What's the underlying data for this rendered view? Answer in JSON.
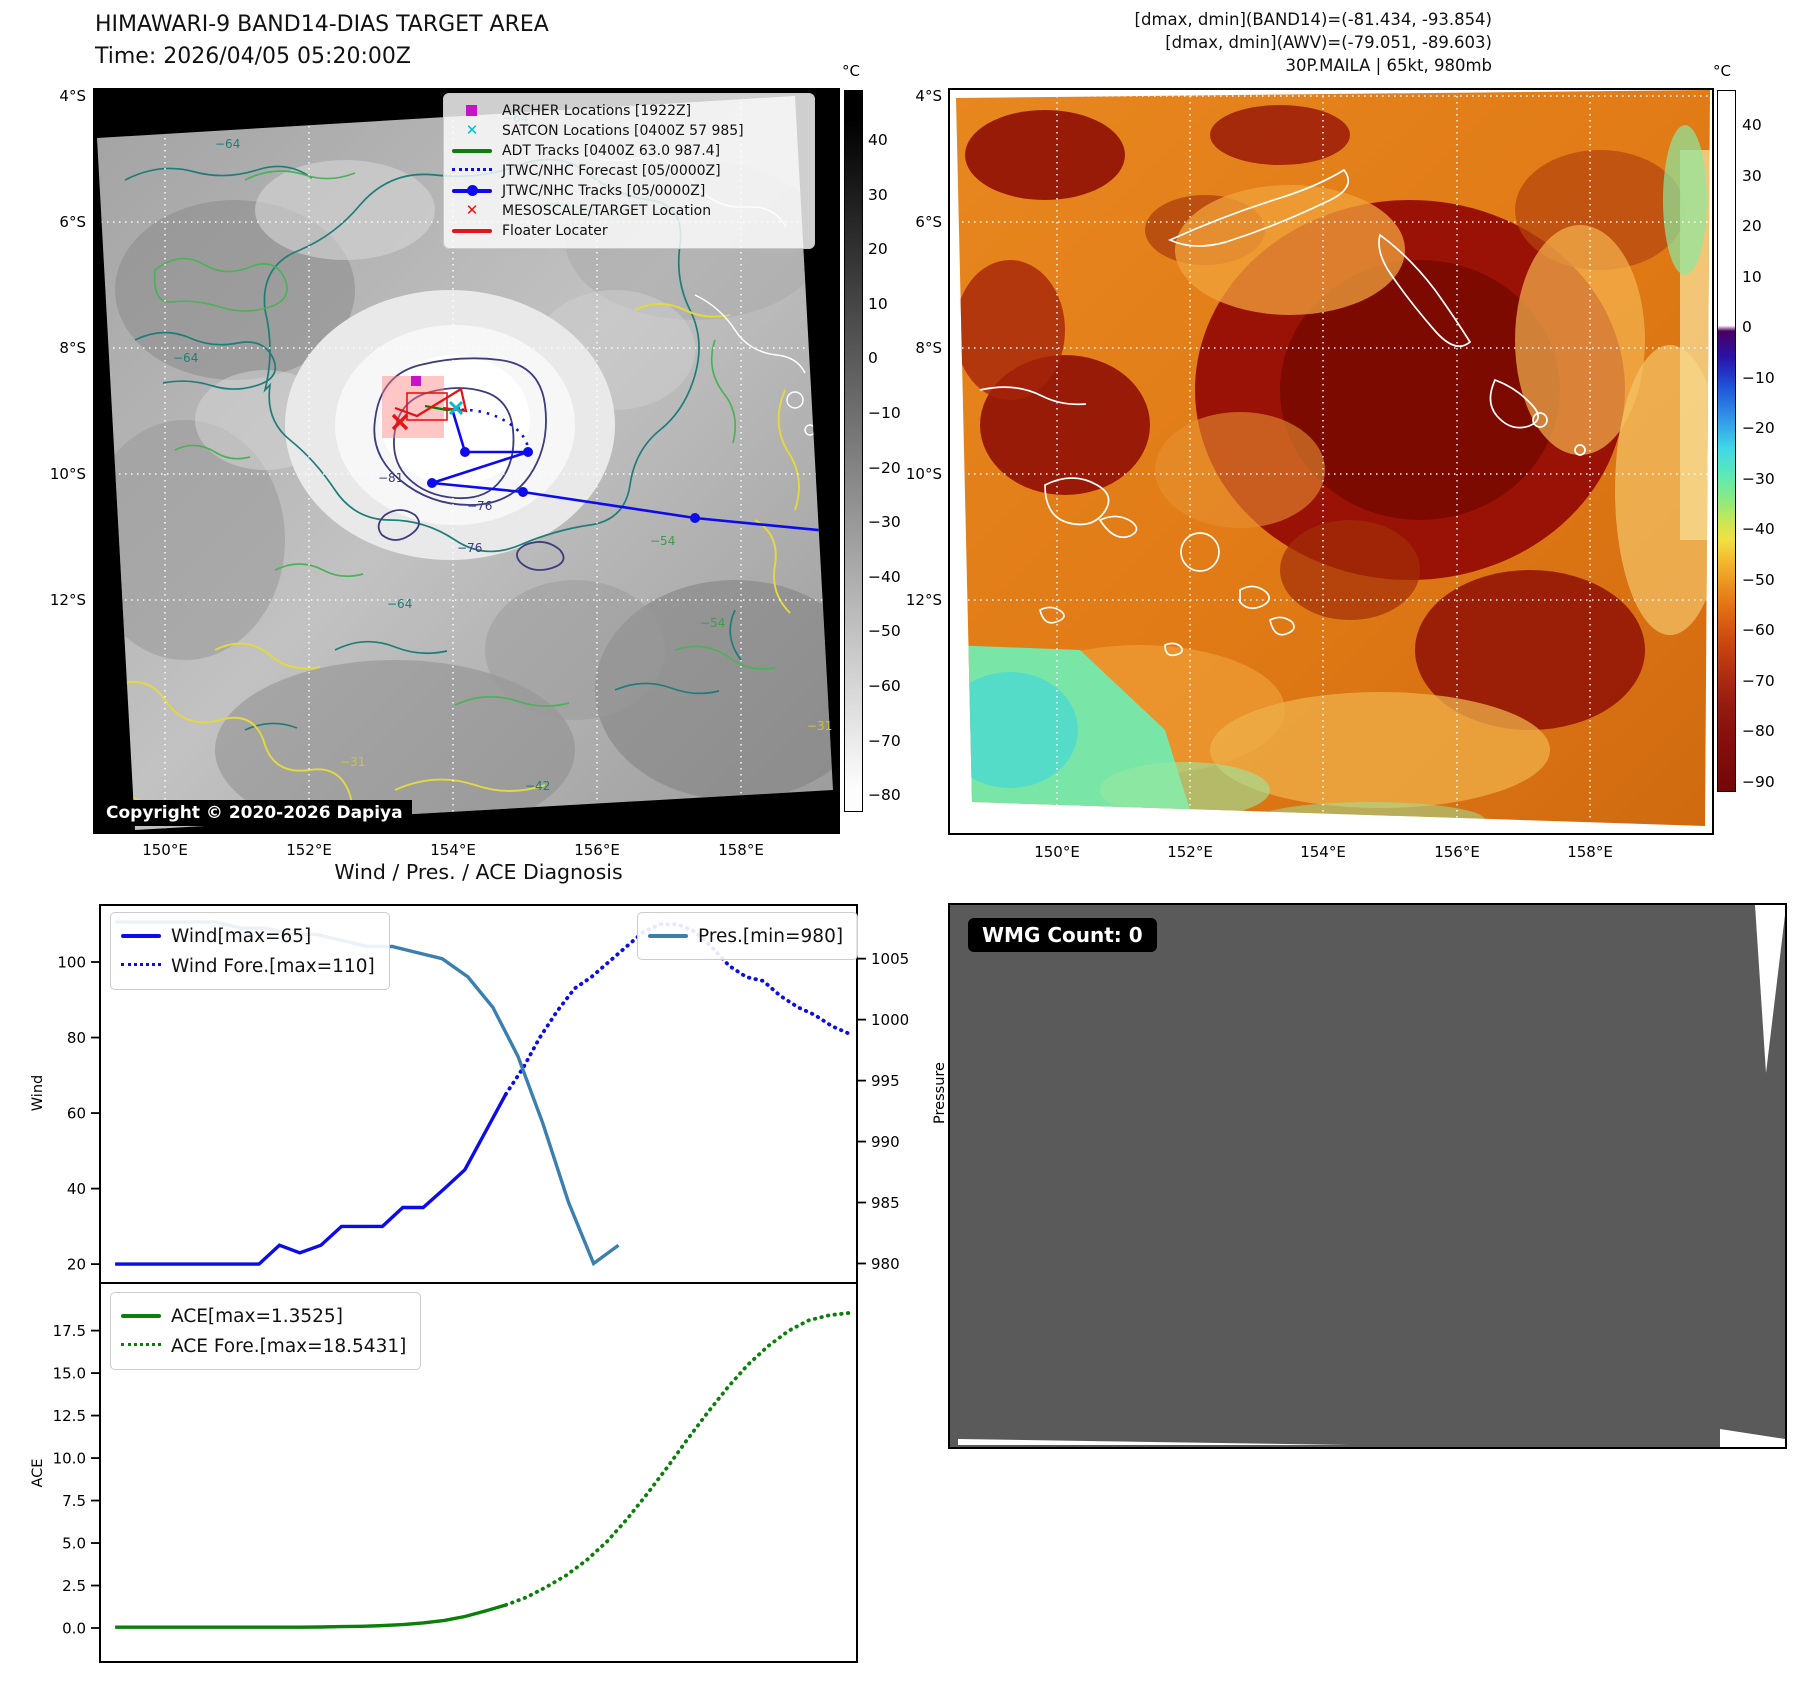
{
  "header": {
    "title": "HIMAWARI-9 BAND14-DIAS TARGET AREA",
    "time_line": "Time: 2026/04/05 05:20:00Z",
    "info_line1": "[dmax, dmin](BAND14)=(-81.434, -93.854)",
    "info_line2": "[dmax, dmin](AWV)=(-79.051, -89.603)",
    "info_line3": "30P.MAILA | 65kt, 980mb"
  },
  "band14_map": {
    "lat_labels": [
      "4°S",
      "6°S",
      "8°S",
      "10°S",
      "12°S"
    ],
    "lon_labels": [
      "150°E",
      "152°E",
      "154°E",
      "156°E",
      "158°E"
    ],
    "colorbar_unit": "°C",
    "colorbar_ticks": [
      "40",
      "30",
      "20",
      "10",
      "0",
      "−10",
      "−20",
      "−30",
      "−40",
      "−50",
      "−60",
      "−70",
      "−80"
    ],
    "legend": [
      {
        "label": "ARCHER Locations [1922Z]",
        "symbol": "square",
        "color": "#c813c8"
      },
      {
        "label": "SATCON Locations [0400Z 57 985]",
        "symbol": "x",
        "color": "#00bfd1"
      },
      {
        "label": "ADT Tracks [0400Z 63.0 987.4]",
        "symbol": "line",
        "color": "#0a800a"
      },
      {
        "label": "JTWC/NHC Forecast [05/0000Z]",
        "symbol": "dotted",
        "color": "#0b0bee"
      },
      {
        "label": "JTWC/NHC Tracks [05/0000Z]",
        "symbol": "linedot",
        "color": "#0b0bee"
      },
      {
        "label": "MESOSCALE/TARGET Location",
        "symbol": "x",
        "color": "#e81313"
      },
      {
        "label": "Floater Locater",
        "symbol": "line",
        "color": "#e81313"
      }
    ],
    "contour_labels": [
      "−64",
      "−64",
      "−64",
      "−64",
      "−81",
      "−76",
      "−76",
      "−54",
      "−54",
      "−31",
      "−31",
      "−42"
    ],
    "copyright": "Copyright © 2020-2026 Dapiya"
  },
  "awv_map": {
    "lat_labels": [
      "4°S",
      "6°S",
      "8°S",
      "10°S",
      "12°S"
    ],
    "lon_labels": [
      "150°E",
      "152°E",
      "154°E",
      "156°E",
      "158°E"
    ],
    "colorbar_unit": "°C",
    "colorbar_ticks": [
      "40",
      "30",
      "20",
      "10",
      "0",
      "−10",
      "−20",
      "−30",
      "−40",
      "−50",
      "−60",
      "−70",
      "−80",
      "−90"
    ]
  },
  "wmg_panel": {
    "label": "WMG Count: 0"
  },
  "chart_data": [
    {
      "type": "line",
      "title": "Wind / Pres. / ACE Diagnosis",
      "ylabel_left": "Wind",
      "ylabel_right": "Pressure",
      "ylim_left": [
        15,
        115.1
      ],
      "ylim_right": [
        978.4,
        1009.4
      ],
      "yticks_left": [
        20,
        40,
        60,
        80,
        100
      ],
      "yticks_right": [
        980,
        985,
        990,
        995,
        1000,
        1005
      ],
      "legend_position": "upper left + upper right",
      "series": [
        {
          "name": "Wind[max=65]",
          "color": "#0b0bee",
          "style": "solid",
          "axis": "left",
          "x": [
            0.02,
            0.047,
            0.074,
            0.101,
            0.129,
            0.156,
            0.183,
            0.21,
            0.237,
            0.264,
            0.292,
            0.319,
            0.346,
            0.373,
            0.4,
            0.427,
            0.455,
            0.482,
            0.509,
            0.536
          ],
          "y": [
            20,
            20,
            20,
            20,
            20,
            20,
            20,
            20,
            25,
            23,
            25,
            30,
            30,
            30,
            35,
            35,
            40,
            45,
            55,
            65
          ]
        },
        {
          "name": "Wind Fore.[max=110]",
          "color": "#0b0bee",
          "style": "dotted",
          "axis": "left",
          "x": [
            0.536,
            0.559,
            0.581,
            0.604,
            0.627,
            0.649,
            0.672,
            0.695,
            0.718,
            0.74,
            0.763,
            0.786,
            0.808,
            0.831,
            0.854,
            0.876,
            0.899,
            0.922,
            0.944,
            0.967,
            0.99
          ],
          "y": [
            65,
            72,
            80,
            87,
            93,
            96,
            100,
            104,
            108,
            110,
            110,
            108,
            104,
            99,
            96,
            95,
            91,
            88,
            86,
            83,
            81
          ]
        },
        {
          "name": "Pres.[min=980]",
          "color": "#3b7fae",
          "style": "solid",
          "axis": "right",
          "x": [
            0.02,
            0.053,
            0.087,
            0.12,
            0.153,
            0.186,
            0.22,
            0.253,
            0.286,
            0.319,
            0.353,
            0.386,
            0.419,
            0.452,
            0.486,
            0.519,
            0.552,
            0.585,
            0.619,
            0.652,
            0.685
          ],
          "y": [
            1008,
            1008,
            1008,
            1008,
            1008,
            1007.5,
            1007.5,
            1007,
            1007,
            1006.5,
            1006,
            1006,
            1005.5,
            1005,
            1003.5,
            1001,
            997,
            991.5,
            985,
            980,
            981.5
          ]
        }
      ]
    },
    {
      "type": "line",
      "ylabel_left": "ACE",
      "ylim_left": [
        -2,
        20.3
      ],
      "yticks_left": [
        0.0,
        2.5,
        5.0,
        7.5,
        10.0,
        12.5,
        15.0,
        17.5
      ],
      "legend_position": "upper left",
      "series": [
        {
          "name": "ACE[max=1.3525]",
          "color": "#0a800a",
          "style": "solid",
          "axis": "left",
          "x": [
            0.02,
            0.047,
            0.074,
            0.101,
            0.129,
            0.156,
            0.183,
            0.21,
            0.237,
            0.264,
            0.292,
            0.319,
            0.346,
            0.373,
            0.4,
            0.427,
            0.455,
            0.482,
            0.509,
            0.536
          ],
          "y": [
            0.05,
            0.05,
            0.05,
            0.05,
            0.05,
            0.05,
            0.05,
            0.05,
            0.05,
            0.05,
            0.06,
            0.08,
            0.1,
            0.14,
            0.2,
            0.3,
            0.45,
            0.68,
            1.0,
            1.3525
          ]
        },
        {
          "name": "ACE Fore.[max=18.5431]",
          "color": "#0a800a",
          "style": "dotted",
          "axis": "left",
          "x": [
            0.536,
            0.563,
            0.589,
            0.616,
            0.643,
            0.67,
            0.696,
            0.723,
            0.75,
            0.776,
            0.803,
            0.83,
            0.856,
            0.883,
            0.91,
            0.936,
            0.963,
            0.99
          ],
          "y": [
            1.3525,
            1.8,
            2.4,
            3.1,
            4.0,
            5.1,
            6.4,
            7.9,
            9.5,
            11.1,
            12.7,
            14.2,
            15.5,
            16.6,
            17.5,
            18.1,
            18.4,
            18.5431
          ]
        }
      ]
    }
  ]
}
